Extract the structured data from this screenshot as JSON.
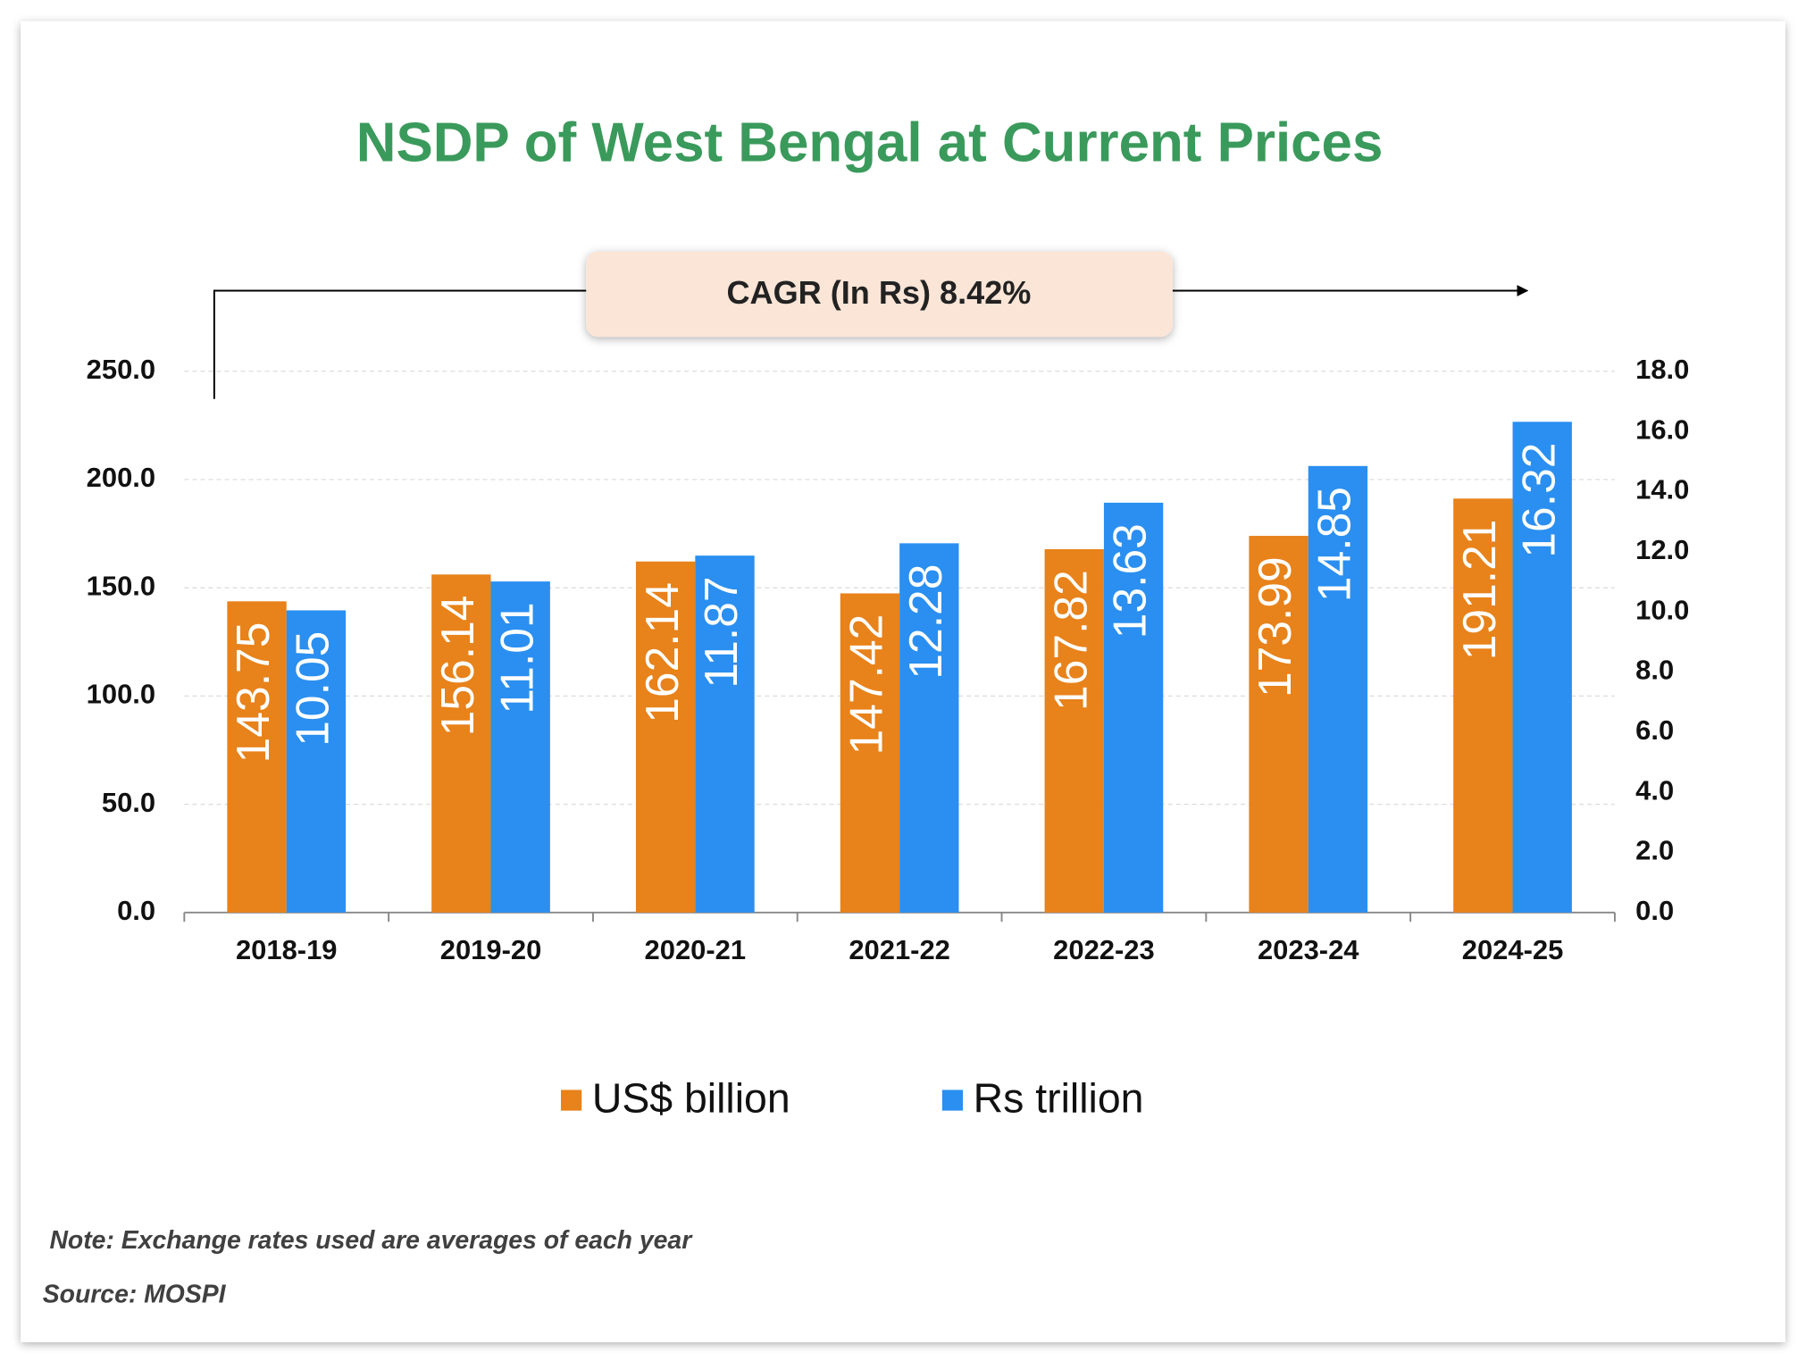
{
  "chart_data": {
    "type": "bar",
    "title": "NSDP of West Bengal at Current Prices",
    "annotation": "CAGR (In Rs) 8.42%",
    "categories": [
      "2018-19",
      "2019-20",
      "2020-21",
      "2021-22",
      "2022-23",
      "2023-24",
      "2024-25"
    ],
    "series": [
      {
        "name": "US$ billion",
        "color": "#e8821a",
        "values": [
          143.75,
          156.14,
          162.14,
          147.42,
          167.82,
          173.99,
          191.21
        ]
      },
      {
        "name": "Rs trillion",
        "color": "#2a8ff0",
        "axis": "y2",
        "values": [
          10.05,
          11.01,
          11.87,
          12.28,
          13.63,
          14.85,
          16.32
        ]
      }
    ],
    "ylim": [
      0,
      250
    ],
    "yticks": [
      {
        "value": 0,
        "label": "0.0"
      },
      {
        "value": 50,
        "label": "50.0"
      },
      {
        "value": 100,
        "label": "100.0"
      },
      {
        "value": 150,
        "label": "150.0"
      },
      {
        "value": 200,
        "label": "200.0"
      },
      {
        "value": 250,
        "label": "250.0"
      }
    ],
    "y2lim": [
      0,
      18
    ],
    "y2ticks": [
      {
        "value": 0,
        "label": "0.0"
      },
      {
        "value": 2,
        "label": "2.0"
      },
      {
        "value": 4,
        "label": "4.0"
      },
      {
        "value": 6,
        "label": "6.0"
      },
      {
        "value": 8,
        "label": "8.0"
      },
      {
        "value": 10,
        "label": "10.0"
      },
      {
        "value": 12,
        "label": "12.0"
      },
      {
        "value": 14,
        "label": "14.0"
      },
      {
        "value": 16,
        "label": "16.0"
      },
      {
        "value": 18,
        "label": "18.0"
      }
    ],
    "grid": true,
    "legend": "bottom",
    "note": "Note: Exchange rates used are averages of each year",
    "source": "Source: MOSPI"
  }
}
